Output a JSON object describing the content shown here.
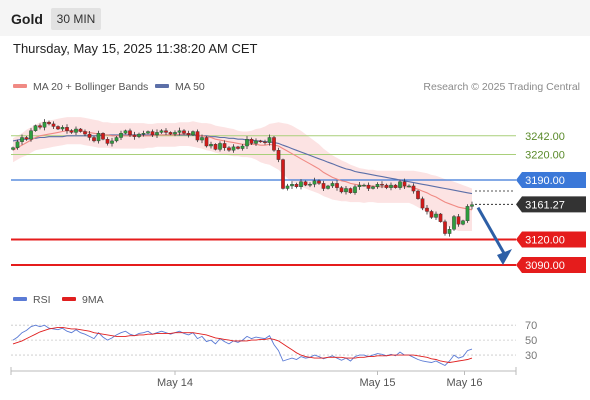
{
  "header": {
    "instrument": "Gold",
    "timeframe": "30 MIN",
    "datetime": "Thursday, May 15, 2025 11:38:20 AM CET"
  },
  "legend": {
    "ma20_label": "MA 20 + Bollinger Bands",
    "ma50_label": "MA 50",
    "copyright": "Research © 2025 Trading Central",
    "rsi_label": "RSI",
    "ma9_label": "9MA"
  },
  "colors": {
    "candle_up": "#2e9e3e",
    "candle_down": "#d11a1a",
    "ma20": "#f08a84",
    "ma50": "#5c6fa8",
    "bollinger_fill": "#fbdada",
    "resistance": "#a9cf7a",
    "pivot": "#3b78d8",
    "support": "#e51c1c",
    "current": "#333333",
    "arrow": "#2d5fa6",
    "rsi": "#5b7bd5",
    "rsi_ma": "#e01f1f"
  },
  "chart_data": [
    {
      "type": "candlestick",
      "title": "Gold 30 MIN",
      "ylim": [
        3070,
        3290
      ],
      "x_ticks": [
        "May 14",
        "May 15",
        "May 16"
      ],
      "levels": [
        {
          "label": "3242.00",
          "value": 3242,
          "kind": "resistance"
        },
        {
          "label": "3220.00",
          "value": 3220,
          "kind": "resistance"
        },
        {
          "label": "3190.00",
          "value": 3190,
          "kind": "pivot"
        },
        {
          "label": "3161.27",
          "value": 3161.27,
          "kind": "current"
        },
        {
          "label": "3120.00",
          "value": 3120,
          "kind": "support"
        },
        {
          "label": "3090.00",
          "value": 3090,
          "kind": "support"
        }
      ],
      "close": [
        3228,
        3235,
        3240,
        3238,
        3248,
        3254,
        3252,
        3258,
        3256,
        3253,
        3250,
        3252,
        3248,
        3246,
        3250,
        3247,
        3244,
        3240,
        3236,
        3245,
        3238,
        3233,
        3236,
        3240,
        3245,
        3248,
        3243,
        3241,
        3244,
        3245,
        3247,
        3243,
        3246,
        3248,
        3246,
        3244,
        3246,
        3248,
        3245,
        3243,
        3247,
        3237,
        3240,
        3230,
        3232,
        3226,
        3233,
        3228,
        3225,
        3229,
        3227,
        3230,
        3238,
        3233,
        3236,
        3235,
        3234,
        3240,
        3225,
        3214,
        3180,
        3183,
        3185,
        3182,
        3188,
        3184,
        3185,
        3189,
        3186,
        3180,
        3183,
        3186,
        3181,
        3176,
        3180,
        3175,
        3182,
        3184,
        3184,
        3180,
        3182,
        3185,
        3184,
        3181,
        3184,
        3181,
        3188,
        3183,
        3183,
        3177,
        3168,
        3157,
        3153,
        3146,
        3150,
        3141,
        3127,
        3132,
        3147,
        3138,
        3142,
        3159,
        3161
      ],
      "ma20": [
        3225,
        3228,
        3231,
        3234,
        3237,
        3240,
        3242,
        3243,
        3244,
        3245,
        3246,
        3247,
        3248,
        3248,
        3248,
        3248,
        3247,
        3246,
        3245,
        3244,
        3243,
        3243,
        3242,
        3242,
        3242,
        3242,
        3242,
        3242,
        3242,
        3242,
        3242,
        3242,
        3243,
        3243,
        3243,
        3243,
        3243,
        3244,
        3244,
        3244,
        3244,
        3243,
        3242,
        3241,
        3240,
        3238,
        3237,
        3236,
        3235,
        3234,
        3233,
        3232,
        3232,
        3232,
        3232,
        3231,
        3231,
        3232,
        3231,
        3230,
        3227,
        3224,
        3221,
        3218,
        3215,
        3212,
        3209,
        3206,
        3203,
        3199,
        3196,
        3193,
        3191,
        3189,
        3188,
        3186,
        3185,
        3184,
        3183,
        3183,
        3183,
        3182,
        3182,
        3182,
        3182,
        3182,
        3182,
        3182,
        3182,
        3181,
        3179,
        3177,
        3175,
        3172,
        3170,
        3167,
        3164,
        3162,
        3160,
        3158,
        3157,
        3156,
        3155
      ],
      "ma50": [
        3236,
        3237,
        3238,
        3238,
        3239,
        3239,
        3240,
        3240,
        3241,
        3241,
        3241,
        3241,
        3242,
        3242,
        3242,
        3242,
        3242,
        3242,
        3242,
        3242,
        3243,
        3243,
        3243,
        3243,
        3243,
        3243,
        3243,
        3243,
        3243,
        3243,
        3243,
        3243,
        3243,
        3243,
        3243,
        3243,
        3243,
        3243,
        3243,
        3243,
        3243,
        3242,
        3242,
        3242,
        3241,
        3241,
        3240,
        3240,
        3239,
        3239,
        3238,
        3238,
        3237,
        3237,
        3236,
        3236,
        3235,
        3235,
        3234,
        3233,
        3231,
        3229,
        3227,
        3225,
        3223,
        3221,
        3219,
        3217,
        3215,
        3213,
        3211,
        3209,
        3207,
        3205,
        3203,
        3202,
        3200,
        3199,
        3198,
        3197,
        3196,
        3195,
        3194,
        3193,
        3192,
        3191,
        3190,
        3189,
        3188,
        3187,
        3186,
        3185,
        3184,
        3183,
        3182,
        3181,
        3180,
        3179,
        3178,
        3177,
        3176,
        3175,
        3174
      ],
      "bb_width": [
        14,
        14,
        14,
        15,
        15,
        15,
        16,
        16,
        16,
        16,
        16,
        16,
        16,
        16,
        16,
        16,
        16,
        16,
        16,
        16,
        15,
        15,
        15,
        15,
        15,
        15,
        15,
        15,
        15,
        15,
        14,
        14,
        14,
        14,
        14,
        14,
        14,
        14,
        14,
        14,
        15,
        15,
        15,
        16,
        16,
        16,
        16,
        16,
        16,
        16,
        15,
        15,
        15,
        16,
        18,
        20,
        22,
        24,
        26,
        28,
        30,
        32,
        33,
        33,
        33,
        32,
        31,
        30,
        29,
        28,
        27,
        26,
        25,
        24,
        23,
        22,
        21,
        20,
        20,
        19,
        19,
        19,
        19,
        19,
        19,
        19,
        19,
        19,
        19,
        20,
        21,
        22,
        23,
        24,
        25,
        26,
        27,
        28,
        28,
        28,
        27,
        26,
        25
      ]
    },
    {
      "type": "line",
      "title": "RSI",
      "ylim": [
        10,
        85
      ],
      "y_ticks": [
        70,
        50,
        30
      ],
      "series": [
        {
          "name": "RSI",
          "values": [
            50,
            54,
            60,
            63,
            68,
            70,
            68,
            70,
            66,
            65,
            64,
            66,
            62,
            60,
            64,
            60,
            58,
            55,
            52,
            60,
            54,
            50,
            53,
            57,
            60,
            62,
            58,
            56,
            59,
            60,
            62,
            58,
            60,
            62,
            60,
            58,
            60,
            62,
            59,
            57,
            60,
            52,
            55,
            48,
            50,
            45,
            52,
            48,
            45,
            49,
            47,
            50,
            55,
            52,
            54,
            53,
            52,
            56,
            44,
            36,
            22,
            24,
            26,
            24,
            28,
            26,
            27,
            30,
            28,
            25,
            27,
            29,
            26,
            23,
            26,
            22,
            28,
            30,
            30,
            28,
            30,
            32,
            31,
            29,
            31,
            29,
            34,
            30,
            30,
            27,
            24,
            22,
            21,
            20,
            22,
            19,
            16,
            22,
            30,
            26,
            28,
            36,
            38
          ]
        },
        {
          "name": "9MA",
          "values": [
            45,
            47,
            49,
            52,
            55,
            58,
            61,
            63,
            65,
            66,
            67,
            67,
            66,
            65,
            65,
            64,
            63,
            62,
            60,
            59,
            58,
            57,
            56,
            55,
            55,
            55,
            56,
            56,
            57,
            57,
            58,
            58,
            59,
            59,
            59,
            59,
            60,
            60,
            60,
            60,
            60,
            59,
            58,
            57,
            55,
            53,
            52,
            51,
            50,
            49,
            49,
            49,
            49,
            50,
            50,
            51,
            51,
            52,
            51,
            49,
            45,
            41,
            37,
            33,
            30,
            28,
            27,
            26,
            26,
            26,
            27,
            27,
            27,
            27,
            26,
            26,
            26,
            27,
            27,
            28,
            28,
            29,
            29,
            29,
            30,
            30,
            30,
            30,
            30,
            30,
            29,
            28,
            27,
            25,
            24,
            22,
            21,
            20,
            21,
            22,
            23,
            24,
            26
          ]
        }
      ]
    }
  ]
}
